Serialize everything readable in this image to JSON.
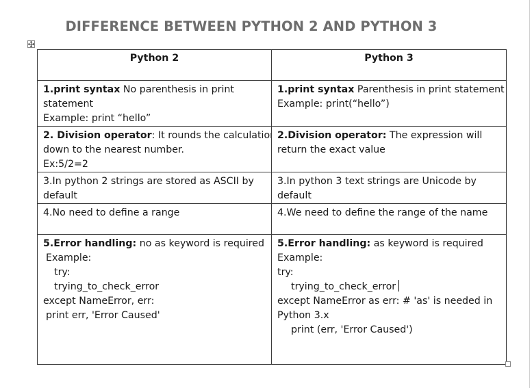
{
  "document": {
    "title": "DIFFERENCE BETWEEN PYTHON 2 AND PYTHON 3",
    "table_move_handle_icon": "move-arrows-icon",
    "table_resize_handle_icon": "resize-square-icon"
  },
  "table": {
    "headers": [
      "Python 2",
      "Python 3"
    ],
    "rows": [
      {
        "py2": {
          "bold": "1.print syntax",
          "text": " No parenthesis in print",
          "line2": "statement",
          "line3": "Example: print “hello”"
        },
        "py3": {
          "bold": "1.print syntax",
          "text": " Parenthesis in print statement",
          "line2": "Example: print(“hello”)"
        }
      },
      {
        "py2": {
          "bold": "2. Division operator",
          "text": ": It rounds the calculation",
          "line2": "down to the nearest number.",
          "line3": "Ex:5/2=2"
        },
        "py3": {
          "bold": "2.Division operator:",
          "text": " The expression will",
          "line2": "return the exact value"
        }
      },
      {
        "py2": {
          "line1": "3.In python 2 strings are stored as ASCII by",
          "line2": "default"
        },
        "py3": {
          "line1": "3.In python 3 text strings are Unicode by",
          "line2": "default"
        }
      },
      {
        "py2": {
          "line1": "4.No need to define a range"
        },
        "py3": {
          "line1": "4.We need to define the range of the name"
        }
      },
      {
        "py2": {
          "bold": "5.Error handling:",
          "text": " no as keyword is required",
          "lines": [
            "Example:",
            "try:",
            "trying_to_check_error",
            "except NameError, err:",
            "print err, 'Error Caused'"
          ]
        },
        "py3": {
          "bold": "5.Error handling:",
          "text": " as keyword is required",
          "lines": [
            "Example:",
            "try:",
            "trying_to_check_error",
            "except NameError as err: # 'as' is needed in",
            "Python 3.x",
            "print (err, 'Error Caused')"
          ]
        }
      }
    ]
  }
}
